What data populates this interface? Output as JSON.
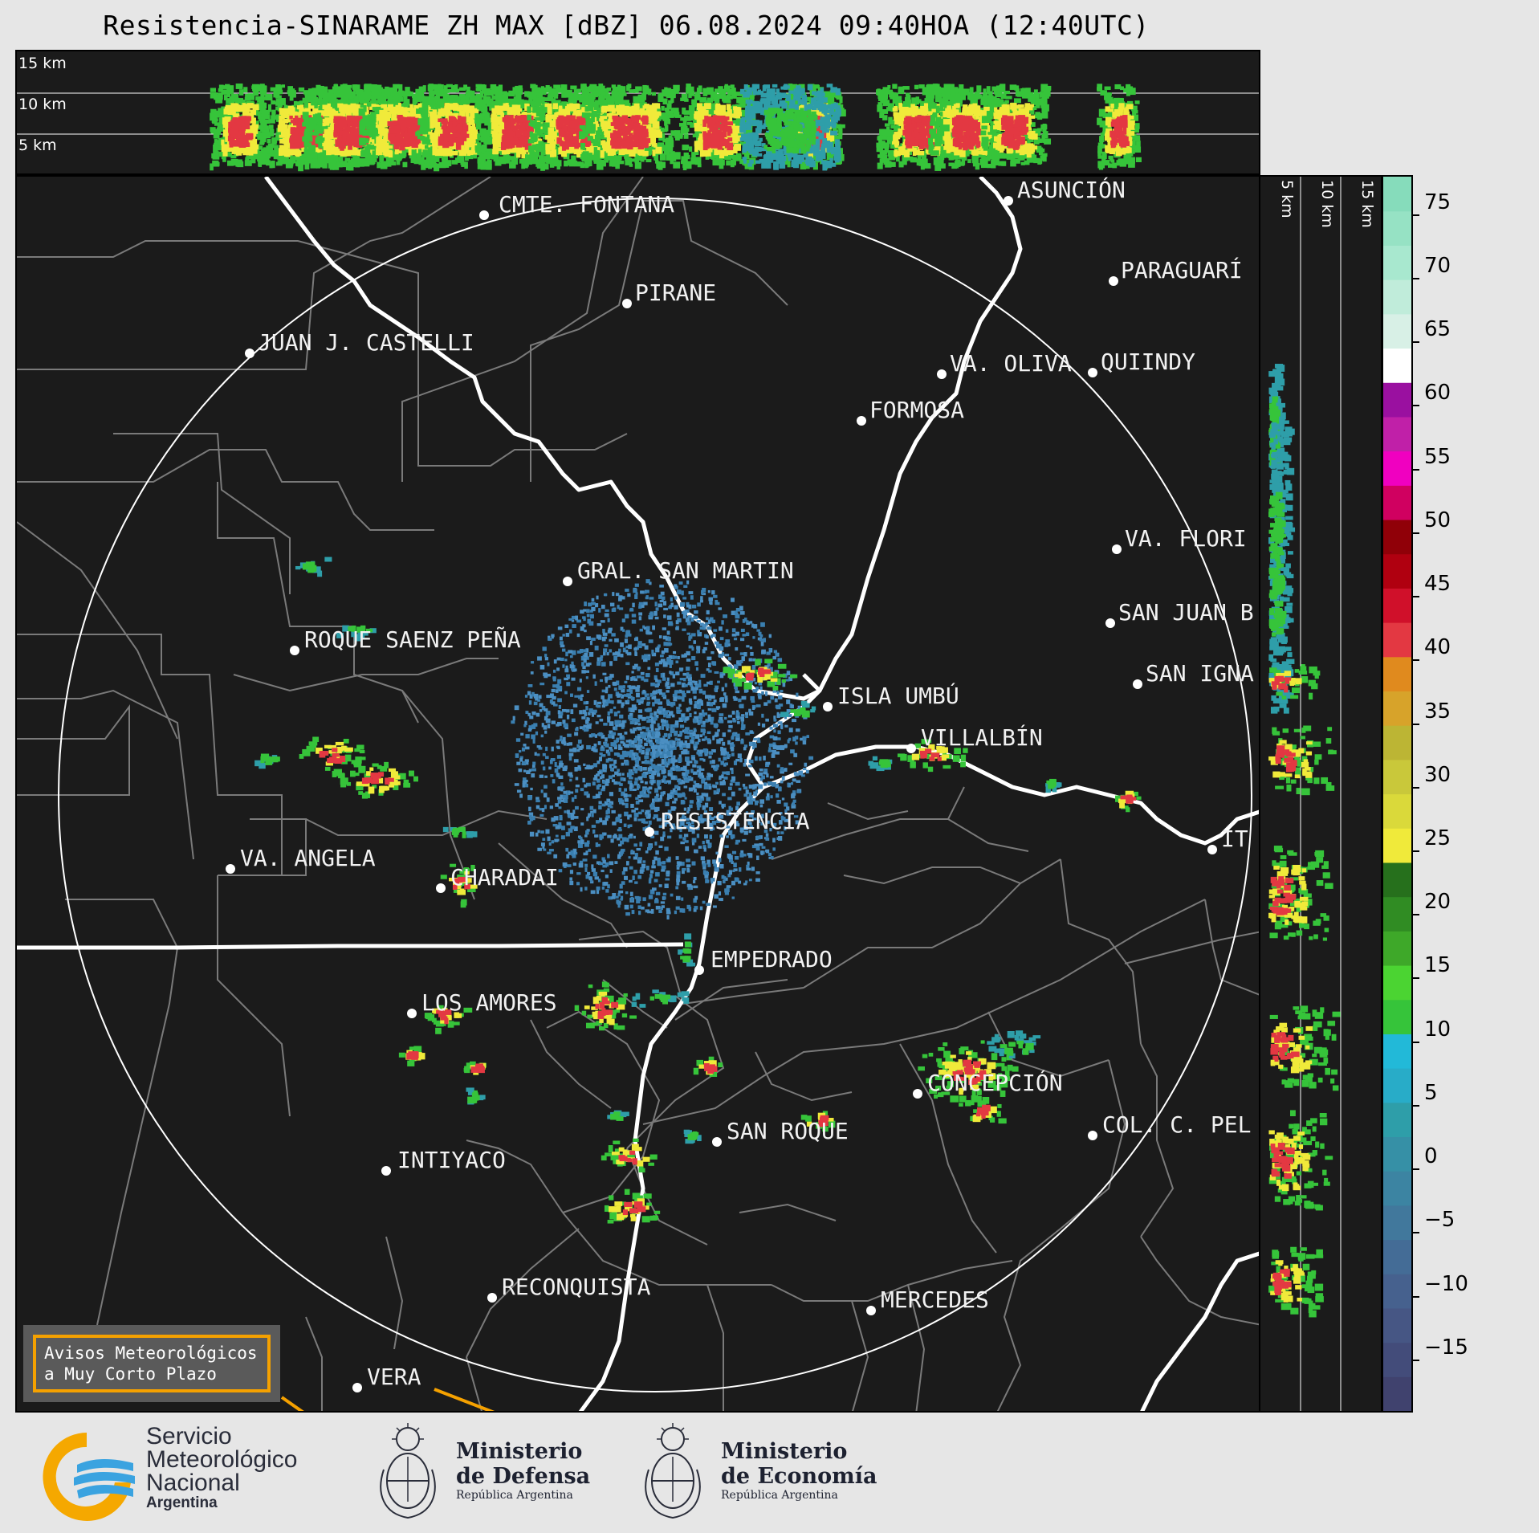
{
  "title": "Resistencia-SINARAME ZH MAX [dBZ] 06.08.2024 09:40HOA (12:40UTC)",
  "height_labels": [
    "15 km",
    "10 km",
    "5 km"
  ],
  "side_height_labels": [
    "5 km",
    "10 km",
    "15 km"
  ],
  "colorbar": {
    "unit": "dBZ",
    "ticks": [
      "75",
      "70",
      "65",
      "60",
      "55",
      "50",
      "45",
      "40",
      "35",
      "30",
      "25",
      "20",
      "15",
      "10",
      "5",
      "0",
      "−5",
      "−10",
      "−15"
    ],
    "min": -20,
    "max": 77
  },
  "cities": [
    {
      "name": "CMTE. FONTANA"
    },
    {
      "name": "ASUNCIÓN"
    },
    {
      "name": "PARAGUARÍ"
    },
    {
      "name": "PIRANE"
    },
    {
      "name": "JUAN J. CASTELLI"
    },
    {
      "name": "VA. OLIVA"
    },
    {
      "name": "QUIINDY"
    },
    {
      "name": "FORMOSA"
    },
    {
      "name": "VA. FLORI"
    },
    {
      "name": "GRAL. SAN MARTIN"
    },
    {
      "name": "SAN JUAN B"
    },
    {
      "name": "ROQUE SAENZ PEÑA"
    },
    {
      "name": "SAN IGNA"
    },
    {
      "name": "ISLA UMBÚ"
    },
    {
      "name": "VILLALBÍN"
    },
    {
      "name": "RESISTENCIA"
    },
    {
      "name": "VA. ANGELA"
    },
    {
      "name": "CHARADAI"
    },
    {
      "name": "IT"
    },
    {
      "name": "EMPEDRADO"
    },
    {
      "name": "LOS AMORES"
    },
    {
      "name": "CONCEPCIÓN"
    },
    {
      "name": "SAN ROQUE"
    },
    {
      "name": "COL. C. PEL"
    },
    {
      "name": "INTIYACO"
    },
    {
      "name": "RECONQUISTA"
    },
    {
      "name": "MERCEDES"
    },
    {
      "name": "VERA"
    }
  ],
  "notice": {
    "line1": "Avisos Meteorológicos",
    "line2": "a Muy Corto Plazo"
  },
  "logos": {
    "smn": {
      "line1": "Servicio",
      "line2": "Meteorológico",
      "line3": "Nacional",
      "line4": "Argentina",
      "icon": "smn-logo-icon"
    },
    "defensa": {
      "line1": "Ministerio",
      "line2": "de Defensa",
      "line3": "República Argentina",
      "icon": "coat-of-arms-icon"
    },
    "economia": {
      "line1": "Ministerio",
      "line2": "de Economía",
      "line3": "República Argentina",
      "icon": "coat-of-arms-icon"
    }
  }
}
